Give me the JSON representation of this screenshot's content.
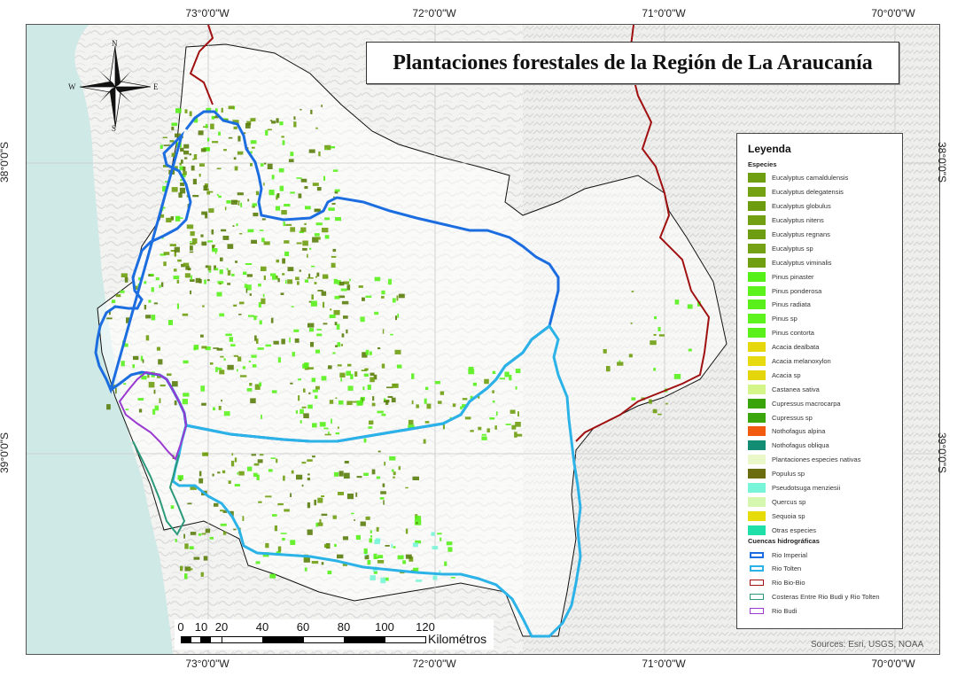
{
  "map": {
    "title": "Plantaciones forestales de la Región de La Araucanía",
    "attribution": "Sources: Esri, USGS, NOAA",
    "ocean_color": "#cfe9e6",
    "land_color": "#f2f2f0"
  },
  "graticule": {
    "longitudes": [
      "73°0'0\"W",
      "72°0'0\"W",
      "71°0'0\"W",
      "70°0'0\"W"
    ],
    "latitudes": [
      "38°0'0\"S",
      "39°0'0\"S"
    ]
  },
  "compass": {
    "n": "N",
    "s": "S",
    "e": "E",
    "w": "W"
  },
  "scalebar": {
    "labels": [
      "0",
      "10",
      "20",
      "40",
      "60",
      "80",
      "100",
      "120"
    ],
    "unit": "Kilométros"
  },
  "legend": {
    "title": "Leyenda",
    "species_heading": "Especies",
    "species": [
      {
        "label": "Eucalyptus camaldulensis",
        "color": "#6f9e10"
      },
      {
        "label": "Eucalyptus delegatensis",
        "color": "#74a212"
      },
      {
        "label": "Eucalyptus globulus",
        "color": "#6e9c0f"
      },
      {
        "label": "Eucalyptus nitens",
        "color": "#73a013"
      },
      {
        "label": "Eucalyptus regnans",
        "color": "#6f9d11"
      },
      {
        "label": "Eucalyptus sp",
        "color": "#75a215"
      },
      {
        "label": "Eucalyptus viminalis",
        "color": "#70a012"
      },
      {
        "label": "Pinus pinaster",
        "color": "#55f018"
      },
      {
        "label": "Pinus ponderosa",
        "color": "#5cf21c"
      },
      {
        "label": "Pinus radiata",
        "color": "#58ef1a"
      },
      {
        "label": "Pinus sp",
        "color": "#5df31f"
      },
      {
        "label": "Pinus contorta",
        "color": "#59f01b"
      },
      {
        "label": "Acacia dealbata",
        "color": "#e6d80c"
      },
      {
        "label": "Acacia melanoxylon",
        "color": "#e8da10"
      },
      {
        "label": "Acacia sp",
        "color": "#e4d60a"
      },
      {
        "label": "Castanea sativa",
        "color": "#d4f58a"
      },
      {
        "label": "Cupressus macrocarpa",
        "color": "#38a40a"
      },
      {
        "label": "Cupressus sp",
        "color": "#3aa60c"
      },
      {
        "label": "Nothofagus alpina",
        "color": "#f25a10"
      },
      {
        "label": "Nothofagus obliqua",
        "color": "#128c72"
      },
      {
        "label": "Plantaciones especies nativas",
        "color": "#eaf7c8"
      },
      {
        "label": "Populus sp",
        "color": "#6b6b10"
      },
      {
        "label": "Pseudotsuga menziesii",
        "color": "#78f5d8"
      },
      {
        "label": "Quercus sp",
        "color": "#d6f7b0"
      },
      {
        "label": "Sequoia sp",
        "color": "#e6dc0a"
      },
      {
        "label": "Otras especies",
        "color": "#1ee0a8"
      }
    ],
    "basins_heading": "Cuencas hidrográficas",
    "basins": [
      {
        "label": "Rio Imperial",
        "color": "#1c6ee0"
      },
      {
        "label": "Rio Tolten",
        "color": "#2bb3e8"
      },
      {
        "label": "Rio Bio-Bio",
        "color": "#a01010"
      },
      {
        "label": "Costeras Entre Rio Budi y Rio Tolten",
        "color": "#2a9a7a"
      },
      {
        "label": "Rio Budi",
        "color": "#9a3ad0"
      }
    ]
  }
}
